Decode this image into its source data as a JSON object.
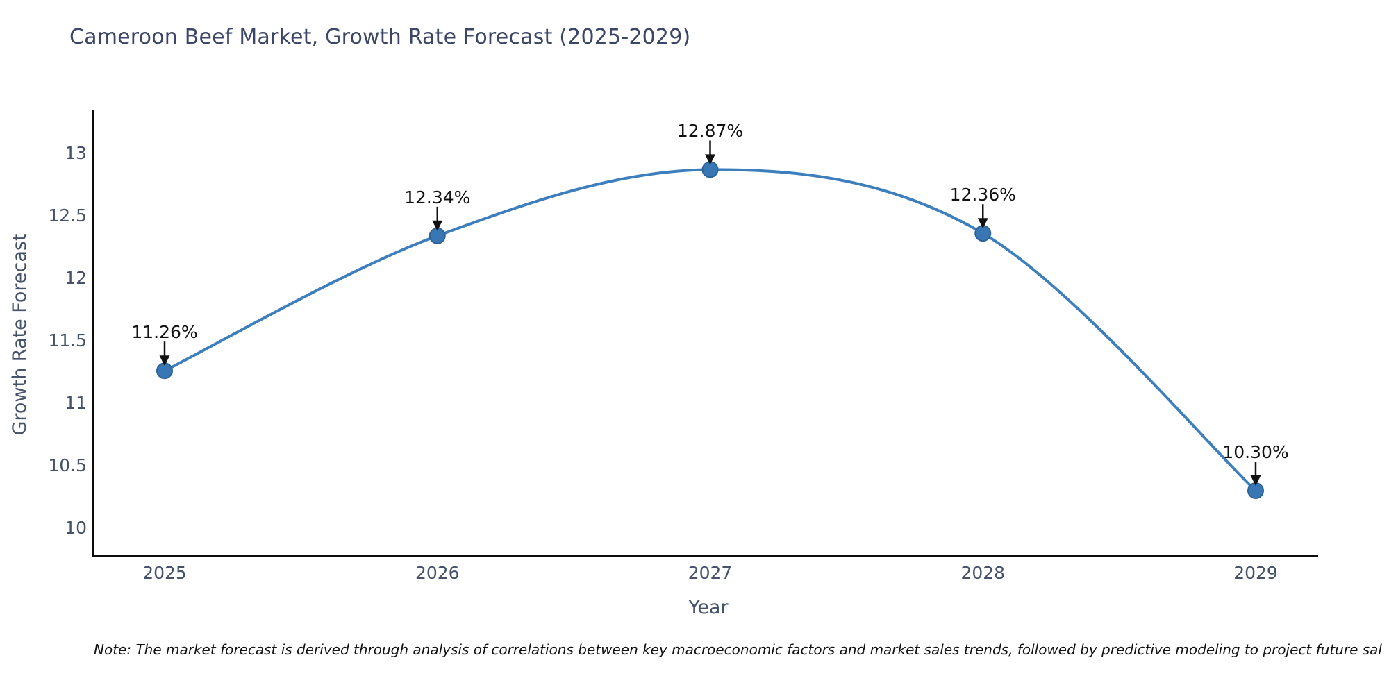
{
  "chart_data": {
    "type": "line",
    "title": "Cameroon Beef Market, Growth Rate Forecast (2025-2029)",
    "xlabel": "Year",
    "ylabel": "Growth Rate Forecast",
    "x": [
      2025,
      2026,
      2027,
      2028,
      2029
    ],
    "categories": [
      "2025",
      "2026",
      "2027",
      "2028",
      "2029"
    ],
    "values": [
      11.26,
      12.34,
      12.87,
      12.36,
      10.3
    ],
    "point_labels": [
      "11.26%",
      "12.34%",
      "12.87%",
      "12.36%",
      "10.30%"
    ],
    "yticks": [
      13,
      12.5,
      12,
      11.5,
      11,
      10.5,
      10
    ],
    "ytick_labels": [
      "13",
      "12.5",
      "12",
      "11.5",
      "11",
      "10.5",
      "10"
    ],
    "ylim": [
      9.78,
      13.35
    ],
    "grid": false,
    "legend": "none",
    "smooth_curve": true,
    "line_color": "#3d7ebd",
    "marker_color": "#3877b4",
    "marker_edge_color": "#2b6399",
    "annotation_color": "#111111",
    "axis_color": "#0d0d0d",
    "title_color": "#3b4668",
    "axis_text_color": "#45526a",
    "note_color": "#111111",
    "note": "Note: The market forecast is derived through analysis of correlations between key macroeconomic factors and market sales trends, followed by predictive modeling to project future sal"
  }
}
